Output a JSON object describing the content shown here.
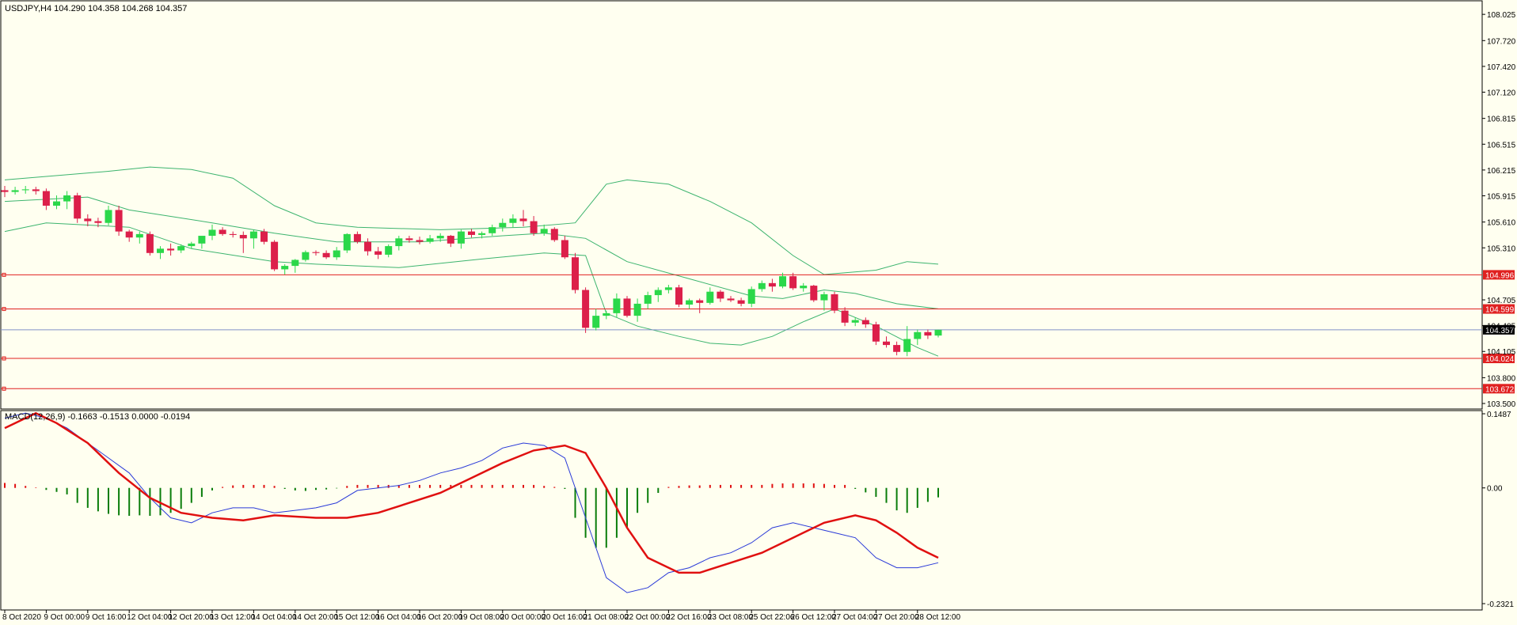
{
  "header": {
    "instrument_label": "USDJPY,H4  104.290 104.358 104.268 104.357"
  },
  "indicator_header": {
    "label": "MACD(12,26,9) -0.1663 -0.1513 0.0000 -0.0194"
  },
  "colors": {
    "background": "#fffff0",
    "bull": "#2bd84a",
    "bear": "#dc1f4a",
    "bands": "#3cb46e",
    "level_line": "#e02020",
    "current_line": "#8090c8",
    "macd_line": "#2a3ad8",
    "signal_line": "#e01010",
    "hist_pos": "#e01010",
    "hist_neg": "#0a7d0a"
  },
  "chart_data": [
    {
      "type": "candlestick",
      "title": "USDJPY,H4",
      "ylim": [
        103.5,
        108.1
      ],
      "yticks": [
        "108.025",
        "107.720",
        "107.420",
        "107.120",
        "106.815",
        "106.515",
        "106.215",
        "105.915",
        "105.610",
        "105.310",
        "104.705",
        "104.405",
        "104.105",
        "103.800",
        "103.500"
      ],
      "xticks": [
        "8 Oct 2020",
        "9 Oct 00:00",
        "9 Oct 16:00",
        "12 Oct 04:00",
        "12 Oct 20:00",
        "13 Oct 12:00",
        "14 Oct 04:00",
        "14 Oct 20:00",
        "15 Oct 12:00",
        "16 Oct 04:00",
        "16 Oct 20:00",
        "19 Oct 08:00",
        "20 Oct 00:00",
        "20 Oct 16:00",
        "21 Oct 08:00",
        "22 Oct 00:00",
        "22 Oct 16:00",
        "23 Oct 08:00",
        "25 Oct 22:06",
        "26 Oct 12:00",
        "27 Oct 04:00",
        "27 Oct 20:00",
        "28 Oct 12:00"
      ],
      "candles": [
        [
          105.98,
          106.03,
          105.9,
          105.96
        ],
        [
          105.96,
          106.02,
          105.93,
          105.98
        ],
        [
          105.98,
          106.03,
          105.94,
          105.99
        ],
        [
          105.99,
          106.02,
          105.93,
          105.97
        ],
        [
          105.97,
          106.0,
          105.75,
          105.8
        ],
        [
          105.8,
          105.92,
          105.76,
          105.85
        ],
        [
          105.85,
          105.97,
          105.76,
          105.92
        ],
        [
          105.92,
          105.95,
          105.6,
          105.65
        ],
        [
          105.65,
          105.7,
          105.56,
          105.62
        ],
        [
          105.62,
          105.66,
          105.55,
          105.6
        ],
        [
          105.6,
          105.8,
          105.57,
          105.75
        ],
        [
          105.75,
          105.8,
          105.45,
          105.5
        ],
        [
          105.5,
          105.52,
          105.38,
          105.43
        ],
        [
          105.43,
          105.5,
          105.36,
          105.47
        ],
        [
          105.47,
          105.5,
          105.22,
          105.25
        ],
        [
          105.25,
          105.33,
          105.18,
          105.3
        ],
        [
          105.3,
          105.36,
          105.22,
          105.28
        ],
        [
          105.28,
          105.35,
          105.25,
          105.33
        ],
        [
          105.33,
          105.38,
          105.3,
          105.36
        ],
        [
          105.36,
          105.42,
          105.3,
          105.45
        ],
        [
          105.45,
          105.58,
          105.4,
          105.52
        ],
        [
          105.52,
          105.55,
          105.45,
          105.47
        ],
        [
          105.47,
          105.5,
          105.43,
          105.46
        ],
        [
          105.46,
          105.5,
          105.25,
          105.42
        ],
        [
          105.42,
          105.52,
          105.3,
          105.5
        ],
        [
          105.5,
          105.53,
          105.35,
          105.38
        ],
        [
          105.38,
          105.4,
          105.04,
          105.06
        ],
        [
          105.06,
          105.12,
          105.0,
          105.1
        ],
        [
          105.1,
          105.18,
          105.02,
          105.17
        ],
        [
          105.17,
          105.28,
          105.15,
          105.26
        ],
        [
          105.26,
          105.28,
          105.22,
          105.25
        ],
        [
          105.25,
          105.28,
          105.18,
          105.2
        ],
        [
          105.2,
          105.32,
          105.17,
          105.28
        ],
        [
          105.28,
          105.48,
          105.25,
          105.47
        ],
        [
          105.47,
          105.5,
          105.36,
          105.38
        ],
        [
          105.38,
          105.42,
          105.22,
          105.27
        ],
        [
          105.27,
          105.32,
          105.18,
          105.23
        ],
        [
          105.23,
          105.35,
          105.2,
          105.33
        ],
        [
          105.33,
          105.45,
          105.28,
          105.42
        ],
        [
          105.42,
          105.45,
          105.37,
          105.4
        ],
        [
          105.4,
          105.44,
          105.35,
          105.38
        ],
        [
          105.38,
          105.46,
          105.36,
          105.42
        ],
        [
          105.42,
          105.48,
          105.38,
          105.45
        ],
        [
          105.45,
          105.46,
          105.32,
          105.36
        ],
        [
          105.36,
          105.52,
          105.3,
          105.5
        ],
        [
          105.5,
          105.53,
          105.43,
          105.46
        ],
        [
          105.46,
          105.5,
          105.42,
          105.48
        ],
        [
          105.48,
          105.58,
          105.45,
          105.55
        ],
        [
          105.55,
          105.65,
          105.5,
          105.6
        ],
        [
          105.6,
          105.7,
          105.55,
          105.65
        ],
        [
          105.65,
          105.75,
          105.56,
          105.62
        ],
        [
          105.62,
          105.68,
          105.45,
          105.48
        ],
        [
          105.48,
          105.58,
          105.45,
          105.53
        ],
        [
          105.53,
          105.55,
          105.38,
          105.4
        ],
        [
          105.4,
          105.45,
          105.18,
          105.2
        ],
        [
          105.2,
          105.25,
          104.78,
          104.82
        ],
        [
          104.82,
          104.85,
          104.32,
          104.38
        ],
        [
          104.38,
          104.6,
          104.35,
          104.52
        ],
        [
          104.52,
          104.58,
          104.48,
          104.55
        ],
        [
          104.55,
          104.78,
          104.5,
          104.72
        ],
        [
          104.72,
          104.75,
          104.5,
          104.52
        ],
        [
          104.52,
          104.72,
          104.45,
          104.66
        ],
        [
          104.66,
          104.8,
          104.6,
          104.76
        ],
        [
          104.76,
          104.85,
          104.68,
          104.82
        ],
        [
          104.82,
          104.88,
          104.78,
          104.85
        ],
        [
          104.85,
          104.88,
          104.62,
          104.65
        ],
        [
          104.65,
          104.72,
          104.6,
          104.7
        ],
        [
          104.7,
          104.72,
          104.55,
          104.67
        ],
        [
          104.67,
          104.85,
          104.65,
          104.8
        ],
        [
          104.8,
          104.82,
          104.68,
          104.72
        ],
        [
          104.72,
          104.75,
          104.68,
          104.7
        ],
        [
          104.7,
          104.73,
          104.63,
          104.66
        ],
        [
          104.66,
          104.86,
          104.62,
          104.83
        ],
        [
          104.83,
          104.93,
          104.8,
          104.9
        ],
        [
          104.9,
          104.95,
          104.8,
          104.86
        ],
        [
          104.86,
          105.02,
          104.84,
          104.98
        ],
        [
          104.98,
          105.02,
          104.82,
          104.84
        ],
        [
          104.84,
          104.9,
          104.8,
          104.87
        ],
        [
          104.87,
          104.88,
          104.68,
          104.7
        ],
        [
          104.7,
          104.8,
          104.58,
          104.77
        ],
        [
          104.77,
          104.8,
          104.55,
          104.58
        ],
        [
          104.58,
          104.62,
          104.4,
          104.44
        ],
        [
          104.44,
          104.5,
          104.4,
          104.47
        ],
        [
          104.47,
          104.5,
          104.38,
          104.42
        ],
        [
          104.42,
          104.45,
          104.18,
          104.22
        ],
        [
          104.22,
          104.28,
          104.15,
          104.18
        ],
        [
          104.18,
          104.22,
          104.06,
          104.1
        ],
        [
          104.1,
          104.4,
          104.05,
          104.25
        ],
        [
          104.25,
          104.36,
          104.18,
          104.33
        ],
        [
          104.33,
          104.36,
          104.25,
          104.29
        ],
        [
          104.29,
          104.358,
          104.268,
          104.357
        ]
      ],
      "bollinger": {
        "upper": [
          [
            0,
            106.1
          ],
          [
            10,
            106.2
          ],
          [
            14,
            106.25
          ],
          [
            18,
            106.22
          ],
          [
            22,
            106.12
          ],
          [
            26,
            105.8
          ],
          [
            30,
            105.6
          ],
          [
            34,
            105.55
          ],
          [
            42,
            105.52
          ],
          [
            50,
            105.55
          ],
          [
            55,
            105.6
          ],
          [
            58,
            106.05
          ],
          [
            60,
            106.1
          ],
          [
            64,
            106.05
          ],
          [
            68,
            105.85
          ],
          [
            72,
            105.6
          ],
          [
            76,
            105.22
          ],
          [
            79,
            105.0
          ],
          [
            84,
            105.05
          ],
          [
            87,
            105.15
          ],
          [
            90,
            105.12
          ]
        ],
        "middle": [
          [
            0,
            105.85
          ],
          [
            8,
            105.9
          ],
          [
            12,
            105.75
          ],
          [
            20,
            105.6
          ],
          [
            26,
            105.48
          ],
          [
            32,
            105.38
          ],
          [
            40,
            105.38
          ],
          [
            48,
            105.45
          ],
          [
            52,
            105.48
          ],
          [
            56,
            105.42
          ],
          [
            60,
            105.15
          ],
          [
            66,
            104.95
          ],
          [
            72,
            104.75
          ],
          [
            75,
            104.72
          ],
          [
            79,
            104.82
          ],
          [
            82,
            104.78
          ],
          [
            86,
            104.66
          ],
          [
            90,
            104.6
          ]
        ],
        "lower": [
          [
            0,
            105.5
          ],
          [
            4,
            105.6
          ],
          [
            12,
            105.55
          ],
          [
            18,
            105.3
          ],
          [
            26,
            105.15
          ],
          [
            30,
            105.12
          ],
          [
            38,
            105.08
          ],
          [
            46,
            105.18
          ],
          [
            52,
            105.25
          ],
          [
            56,
            105.22
          ],
          [
            58,
            104.55
          ],
          [
            61,
            104.4
          ],
          [
            65,
            104.28
          ],
          [
            68,
            104.2
          ],
          [
            71,
            104.18
          ],
          [
            74,
            104.28
          ],
          [
            77,
            104.45
          ],
          [
            80,
            104.6
          ],
          [
            84,
            104.4
          ],
          [
            88,
            104.15
          ],
          [
            90,
            104.05
          ]
        ]
      },
      "levels": [
        {
          "value": 104.996,
          "label": "104.996"
        },
        {
          "value": 104.599,
          "label": "104.599"
        },
        {
          "value": 104.024,
          "label": "104.024"
        },
        {
          "value": 103.672,
          "label": "103.672"
        }
      ],
      "current_price": {
        "value": 104.357,
        "label": "104.357"
      }
    },
    {
      "type": "macd",
      "title": "MACD(12,26,9)",
      "ylim": [
        -0.2321,
        0.1487
      ],
      "yticks": [
        "0.1487",
        "0.00",
        "-0.2321"
      ],
      "histogram": [
        0.01,
        0.008,
        0.004,
        0.001,
        -0.004,
        -0.008,
        -0.013,
        -0.03,
        -0.04,
        -0.047,
        -0.052,
        -0.055,
        -0.056,
        -0.055,
        -0.056,
        -0.055,
        -0.05,
        -0.042,
        -0.03,
        -0.018,
        -0.005,
        0.002,
        0.005,
        0.006,
        0.006,
        0.006,
        0.004,
        -0.002,
        -0.005,
        -0.006,
        -0.004,
        -0.003,
        -0.001,
        0.004,
        0.006,
        0.006,
        0.006,
        0.006,
        0.006,
        0.006,
        0.006,
        0.006,
        0.006,
        0.006,
        0.006,
        0.006,
        0.006,
        0.006,
        0.006,
        0.006,
        0.006,
        0.006,
        0.004,
        0.002,
        -0.002,
        -0.06,
        -0.1,
        -0.12,
        -0.12,
        -0.1,
        -0.08,
        -0.05,
        -0.03,
        -0.01,
        0.002,
        0.004,
        0.005,
        0.005,
        0.006,
        0.006,
        0.006,
        0.006,
        0.006,
        0.006,
        0.008,
        0.009,
        0.009,
        0.009,
        0.009,
        0.008,
        0.006,
        0.006,
        -0.002,
        -0.009,
        -0.018,
        -0.03,
        -0.045,
        -0.05,
        -0.04,
        -0.028,
        -0.019
      ],
      "macd": [
        [
          0,
          0.14
        ],
        [
          2,
          0.15
        ],
        [
          4,
          0.14
        ],
        [
          6,
          0.12
        ],
        [
          8,
          0.09
        ],
        [
          10,
          0.06
        ],
        [
          12,
          0.03
        ],
        [
          14,
          -0.02
        ],
        [
          16,
          -0.06
        ],
        [
          18,
          -0.07
        ],
        [
          20,
          -0.05
        ],
        [
          22,
          -0.04
        ],
        [
          24,
          -0.04
        ],
        [
          26,
          -0.05
        ],
        [
          28,
          -0.045
        ],
        [
          30,
          -0.04
        ],
        [
          32,
          -0.03
        ],
        [
          34,
          -0.005
        ],
        [
          36,
          0.0
        ],
        [
          38,
          0.005
        ],
        [
          40,
          0.015
        ],
        [
          42,
          0.03
        ],
        [
          44,
          0.04
        ],
        [
          46,
          0.055
        ],
        [
          48,
          0.08
        ],
        [
          50,
          0.09
        ],
        [
          52,
          0.085
        ],
        [
          54,
          0.06
        ],
        [
          56,
          -0.06
        ],
        [
          58,
          -0.18
        ],
        [
          60,
          -0.21
        ],
        [
          62,
          -0.2
        ],
        [
          64,
          -0.17
        ],
        [
          66,
          -0.16
        ],
        [
          68,
          -0.14
        ],
        [
          70,
          -0.13
        ],
        [
          72,
          -0.11
        ],
        [
          74,
          -0.08
        ],
        [
          76,
          -0.07
        ],
        [
          78,
          -0.08
        ],
        [
          80,
          -0.09
        ],
        [
          82,
          -0.1
        ],
        [
          84,
          -0.14
        ],
        [
          86,
          -0.16
        ],
        [
          88,
          -0.16
        ],
        [
          90,
          -0.15
        ]
      ],
      "signal": [
        [
          0,
          0.12
        ],
        [
          3,
          0.15
        ],
        [
          5,
          0.13
        ],
        [
          8,
          0.09
        ],
        [
          11,
          0.03
        ],
        [
          14,
          -0.02
        ],
        [
          17,
          -0.05
        ],
        [
          20,
          -0.06
        ],
        [
          23,
          -0.065
        ],
        [
          26,
          -0.055
        ],
        [
          30,
          -0.06
        ],
        [
          33,
          -0.06
        ],
        [
          36,
          -0.05
        ],
        [
          39,
          -0.03
        ],
        [
          42,
          -0.01
        ],
        [
          45,
          0.02
        ],
        [
          48,
          0.05
        ],
        [
          51,
          0.075
        ],
        [
          54,
          0.085
        ],
        [
          56,
          0.07
        ],
        [
          58,
          0.0
        ],
        [
          60,
          -0.08
        ],
        [
          62,
          -0.14
        ],
        [
          65,
          -0.17
        ],
        [
          67,
          -0.17
        ],
        [
          70,
          -0.15
        ],
        [
          73,
          -0.13
        ],
        [
          76,
          -0.1
        ],
        [
          79,
          -0.07
        ],
        [
          82,
          -0.055
        ],
        [
          84,
          -0.065
        ],
        [
          86,
          -0.09
        ],
        [
          88,
          -0.12
        ],
        [
          90,
          -0.14
        ]
      ]
    }
  ]
}
